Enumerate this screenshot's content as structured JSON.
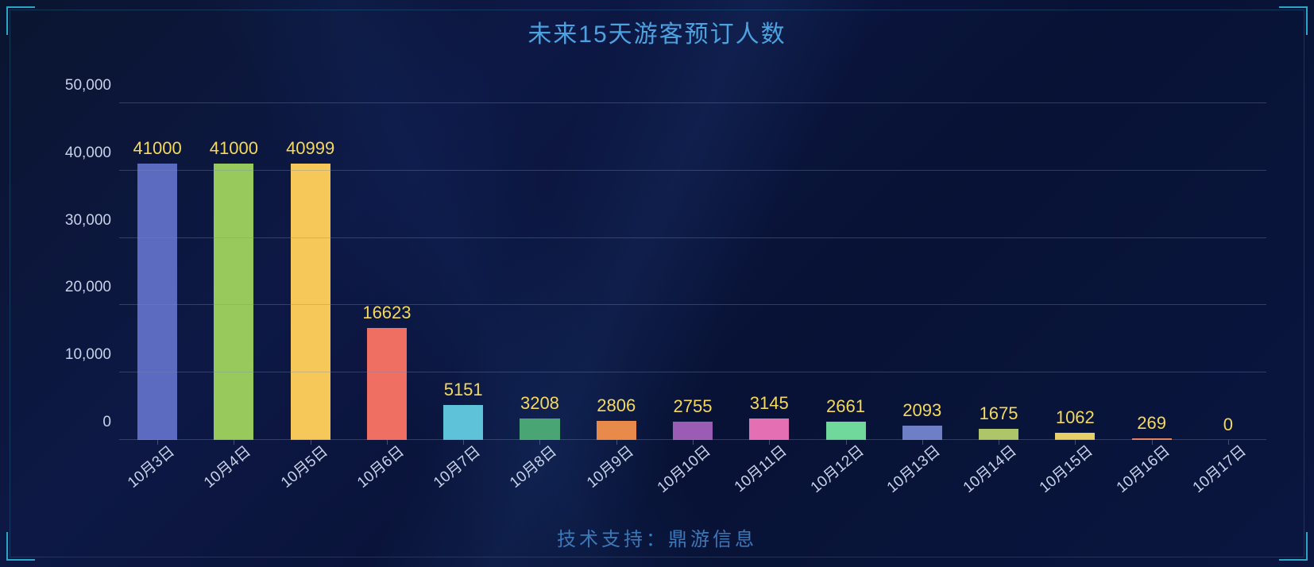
{
  "title": "未来15天游客预订人数",
  "footer": "技术支持：鼎游信息",
  "title_color": "#4aa3e0",
  "footer_color": "#3a78b8",
  "background": "linear-gradient(135deg, #0a1530 0%, #0d1845 30%, #081235 60%, #0a1640 100%)",
  "corner_color": "#2aa5c8",
  "chart": {
    "type": "bar",
    "categories": [
      "10月3日",
      "10月4日",
      "10月5日",
      "10月6日",
      "10月7日",
      "10月8日",
      "10月9日",
      "10月10日",
      "10月11日",
      "10月12日",
      "10月13日",
      "10月14日",
      "10月15日",
      "10月16日",
      "10月17日"
    ],
    "values": [
      41000,
      41000,
      40999,
      16623,
      5151,
      3208,
      2806,
      2755,
      3145,
      2661,
      2093,
      1675,
      1062,
      269,
      0
    ],
    "bar_colors": [
      "#5c6bc0",
      "#97c95c",
      "#f6c85a",
      "#ef6f63",
      "#5ec3d9",
      "#4aa574",
      "#e88b4a",
      "#9a5cb5",
      "#e56fb3",
      "#6fd89a",
      "#6f7fc5",
      "#aec56a",
      "#e8cf66",
      "#e88862",
      "#6fb5e0"
    ],
    "value_label_color": "#f5d95a",
    "axis_label_color": "#c8d2e8",
    "grid_color": "rgba(120,140,180,0.35)",
    "ylim": [
      0,
      50000
    ],
    "yticks": [
      0,
      10000,
      20000,
      30000,
      40000,
      50000
    ],
    "ytick_labels": [
      "0",
      "10,000",
      "20,000",
      "30,000",
      "40,000",
      "50,000"
    ],
    "bar_width_ratio": 0.52,
    "value_label_fontsize": 22,
    "axis_label_fontsize": 19,
    "title_fontsize": 30,
    "xlabel_rotation_deg": -40
  }
}
